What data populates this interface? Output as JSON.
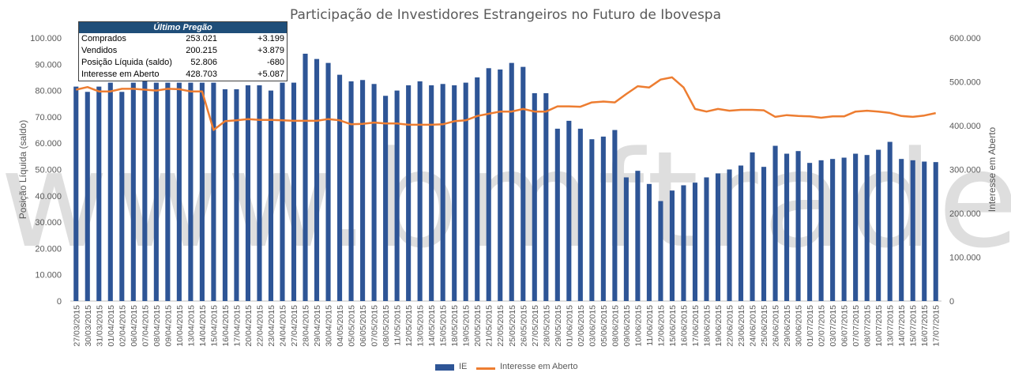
{
  "colors": {
    "bars": "#2e5596",
    "line": "#ed7d31",
    "table_header": "#1f4e79"
  },
  "stats_box": {
    "header": "Último Pregão",
    "rows": [
      {
        "label": "Comprados",
        "value": "253.021",
        "change": "+3.199"
      },
      {
        "label": "Vendidos",
        "value": "200.215",
        "change": "+3.879"
      },
      {
        "label": "Posição Líquida (saldo)",
        "value": "52.806",
        "change": "-680"
      },
      {
        "label": "Interesse em Aberto",
        "value": "428.703",
        "change": "+5.087"
      }
    ]
  },
  "watermark": "www.bmftrader.com",
  "chart_data": {
    "type": "bar",
    "title": "Participação de Investidores Estrangeiros no Futuro de Ibovespa",
    "ylabel": "Posição Líquida (saldo)",
    "y2label": "Interesse em Aberto",
    "ylim": [
      0,
      100000
    ],
    "y2lim": [
      0,
      600000
    ],
    "yticks": [
      "0",
      "10.000",
      "20.000",
      "30.000",
      "40.000",
      "50.000",
      "60.000",
      "70.000",
      "80.000",
      "90.000",
      "100.000"
    ],
    "y2ticks": [
      "0",
      "100.000",
      "200.000",
      "300.000",
      "400.000",
      "500.000",
      "600.000"
    ],
    "categories": [
      "27/03/2015",
      "30/03/2015",
      "31/03/2015",
      "01/04/2015",
      "02/04/2015",
      "06/04/2015",
      "07/04/2015",
      "08/04/2015",
      "09/04/2015",
      "10/04/2015",
      "13/04/2015",
      "14/04/2015",
      "15/04/2015",
      "16/04/2015",
      "17/04/2015",
      "20/04/2015",
      "22/04/2015",
      "23/04/2015",
      "24/04/2015",
      "27/04/2015",
      "28/04/2015",
      "29/04/2015",
      "30/04/2015",
      "04/05/2015",
      "05/05/2015",
      "06/05/2015",
      "07/05/2015",
      "08/05/2015",
      "11/05/2015",
      "12/05/2015",
      "13/05/2015",
      "14/05/2015",
      "15/05/2015",
      "18/05/2015",
      "19/05/2015",
      "20/05/2015",
      "21/05/2015",
      "22/05/2015",
      "25/05/2015",
      "26/05/2015",
      "27/05/2015",
      "28/05/2015",
      "29/05/2015",
      "01/06/2015",
      "02/06/2015",
      "03/06/2015",
      "05/06/2015",
      "08/06/2015",
      "09/06/2015",
      "10/06/2015",
      "11/06/2015",
      "12/06/2015",
      "15/06/2015",
      "16/06/2015",
      "17/06/2015",
      "18/06/2015",
      "19/06/2015",
      "22/06/2015",
      "23/06/2015",
      "24/06/2015",
      "25/06/2015",
      "26/06/2015",
      "29/06/2015",
      "30/06/2015",
      "01/07/2015",
      "02/07/2015",
      "03/07/2015",
      "06/07/2015",
      "07/07/2015",
      "08/07/2015",
      "10/07/2015",
      "13/07/2015",
      "14/07/2015",
      "15/07/2015",
      "16/07/2015",
      "17/07/2015"
    ],
    "series": [
      {
        "name": "IE",
        "kind": "bar",
        "axis": "left",
        "values": [
          81500,
          79500,
          81500,
          83000,
          79500,
          83000,
          83500,
          83000,
          83000,
          83000,
          83000,
          83000,
          83000,
          80500,
          80500,
          82000,
          82000,
          80000,
          83000,
          83000,
          94000,
          92000,
          90500,
          86000,
          83500,
          84000,
          82500,
          78000,
          80000,
          82000,
          83500,
          82000,
          82500,
          82000,
          83000,
          85000,
          88500,
          88000,
          90500,
          89000,
          79000,
          79000,
          65500,
          68500,
          65500,
          61500,
          62500,
          65000,
          47000,
          49500,
          44500,
          38000,
          42000,
          44000,
          45000,
          47000,
          48500,
          50000,
          51500,
          56500,
          51000,
          59000,
          56000,
          57000,
          52500,
          53500,
          54000,
          54500,
          56000,
          55500,
          57500,
          60500,
          54000,
          53500,
          53000,
          52806
        ]
      },
      {
        "name": "Interesse em Aberto",
        "kind": "line",
        "axis": "right",
        "values": [
          482000,
          488000,
          478000,
          478000,
          484000,
          484000,
          482000,
          480000,
          484000,
          483000,
          478000,
          478000,
          390000,
          410000,
          412000,
          415000,
          413000,
          413000,
          412000,
          411000,
          411000,
          411000,
          415000,
          412000,
          403000,
          404000,
          407000,
          405000,
          405000,
          402000,
          402000,
          402000,
          403000,
          410000,
          412000,
          422000,
          427000,
          432000,
          432000,
          438000,
          432000,
          432000,
          444000,
          444000,
          443000,
          453000,
          455000,
          453000,
          472000,
          490000,
          487000,
          505000,
          510000,
          487000,
          438000,
          432000,
          438000,
          434000,
          436000,
          436000,
          435000,
          420000,
          424000,
          422000,
          421000,
          418000,
          421000,
          421000,
          432000,
          434000,
          432000,
          429000,
          422000,
          420000,
          423000,
          428703
        ]
      }
    ],
    "legend_position": "bottom"
  }
}
